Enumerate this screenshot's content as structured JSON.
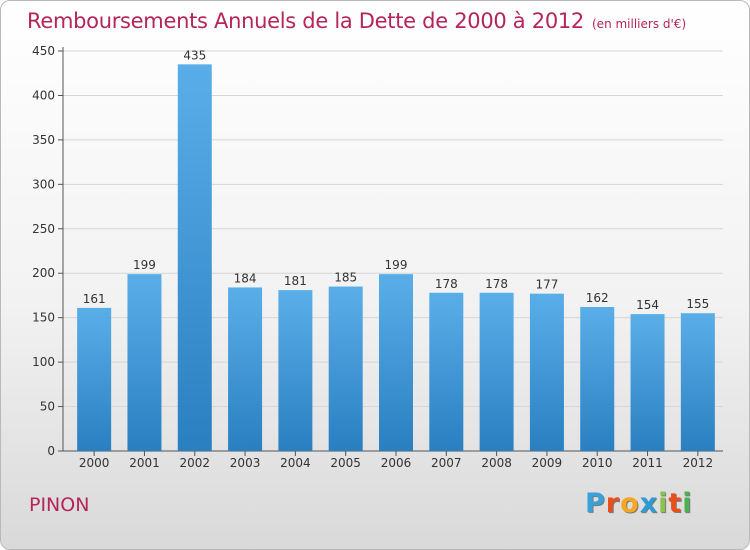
{
  "title": {
    "main": "Remboursements Annuels de la Dette de 2000 à 2012",
    "unit": "(en milliers d'€)"
  },
  "commune": "PINON",
  "logo": {
    "text": "Proxiti",
    "letter_colors": [
      "#3aa0d8",
      "#e94e1b",
      "#f5a623",
      "#2e9bd6",
      "#8bc34a",
      "#e94e1b",
      "#4caf50"
    ]
  },
  "colors": {
    "accent": "#b5245a",
    "bar_top": "#5aaee8",
    "bar_bottom": "#2a7fc1"
  },
  "chart_data": {
    "type": "bar",
    "title": "Remboursements Annuels de la Dette de 2000 à 2012",
    "categories": [
      "2000",
      "2001",
      "2002",
      "2003",
      "2004",
      "2005",
      "2006",
      "2007",
      "2008",
      "2009",
      "2010",
      "2011",
      "2012"
    ],
    "values": [
      161,
      199,
      435,
      184,
      181,
      185,
      199,
      178,
      178,
      177,
      162,
      154,
      155
    ],
    "ylim": [
      0,
      450
    ],
    "yticks": [
      0,
      50,
      100,
      150,
      200,
      250,
      300,
      350,
      400,
      450
    ],
    "grid": true,
    "data_labels": true
  }
}
